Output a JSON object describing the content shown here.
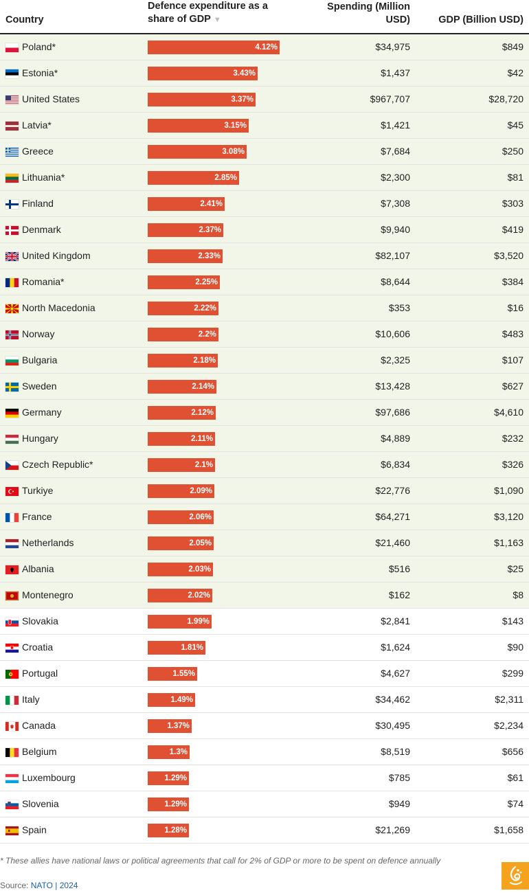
{
  "headers": {
    "country": "Country",
    "share_line1": "Defence expenditure as a",
    "share_line2": "share of GDP",
    "sort_indicator": "▼",
    "spending_line1": "Spending (Million",
    "spending_line2": "USD)",
    "gdp": "GDP (Billion USD)"
  },
  "colors": {
    "bar": "#e05032",
    "highlight": "#f1f6e9",
    "source_link": "#1a5fa8",
    "logo": "#f5a21d"
  },
  "chart_data": {
    "type": "table",
    "value_max": 4.12,
    "rows": [
      {
        "country": "Poland*",
        "flag": "poland-flag",
        "share": 4.12,
        "share_label": "4.12%",
        "spending": "$34,975",
        "gdp": "$849",
        "highlight": true
      },
      {
        "country": "Estonia*",
        "flag": "estonia-flag",
        "share": 3.43,
        "share_label": "3.43%",
        "spending": "$1,437",
        "gdp": "$42",
        "highlight": true
      },
      {
        "country": "United States",
        "flag": "united-states-flag",
        "share": 3.37,
        "share_label": "3.37%",
        "spending": "$967,707",
        "gdp": "$28,720",
        "highlight": true
      },
      {
        "country": "Latvia*",
        "flag": "latvia-flag",
        "share": 3.15,
        "share_label": "3.15%",
        "spending": "$1,421",
        "gdp": "$45",
        "highlight": true
      },
      {
        "country": "Greece",
        "flag": "greece-flag",
        "share": 3.08,
        "share_label": "3.08%",
        "spending": "$7,684",
        "gdp": "$250",
        "highlight": true
      },
      {
        "country": "Lithuania*",
        "flag": "lithuania-flag",
        "share": 2.85,
        "share_label": "2.85%",
        "spending": "$2,300",
        "gdp": "$81",
        "highlight": true
      },
      {
        "country": "Finland",
        "flag": "finland-flag",
        "share": 2.41,
        "share_label": "2.41%",
        "spending": "$7,308",
        "gdp": "$303",
        "highlight": true
      },
      {
        "country": "Denmark",
        "flag": "denmark-flag",
        "share": 2.37,
        "share_label": "2.37%",
        "spending": "$9,940",
        "gdp": "$419",
        "highlight": true
      },
      {
        "country": "United Kingdom",
        "flag": "united-kingdom-flag",
        "share": 2.33,
        "share_label": "2.33%",
        "spending": "$82,107",
        "gdp": "$3,520",
        "highlight": true
      },
      {
        "country": "Romania*",
        "flag": "romania-flag",
        "share": 2.25,
        "share_label": "2.25%",
        "spending": "$8,644",
        "gdp": "$384",
        "highlight": true
      },
      {
        "country": "North Macedonia",
        "flag": "north-macedonia-flag",
        "share": 2.22,
        "share_label": "2.22%",
        "spending": "$353",
        "gdp": "$16",
        "highlight": true
      },
      {
        "country": "Norway",
        "flag": "norway-flag",
        "share": 2.2,
        "share_label": "2.2%",
        "spending": "$10,606",
        "gdp": "$483",
        "highlight": true
      },
      {
        "country": "Bulgaria",
        "flag": "bulgaria-flag",
        "share": 2.18,
        "share_label": "2.18%",
        "spending": "$2,325",
        "gdp": "$107",
        "highlight": true
      },
      {
        "country": "Sweden",
        "flag": "sweden-flag",
        "share": 2.14,
        "share_label": "2.14%",
        "spending": "$13,428",
        "gdp": "$627",
        "highlight": true
      },
      {
        "country": "Germany",
        "flag": "germany-flag",
        "share": 2.12,
        "share_label": "2.12%",
        "spending": "$97,686",
        "gdp": "$4,610",
        "highlight": true
      },
      {
        "country": "Hungary",
        "flag": "hungary-flag",
        "share": 2.11,
        "share_label": "2.11%",
        "spending": "$4,889",
        "gdp": "$232",
        "highlight": true
      },
      {
        "country": "Czech Republic*",
        "flag": "czech-republic-flag",
        "share": 2.1,
        "share_label": "2.1%",
        "spending": "$6,834",
        "gdp": "$326",
        "highlight": true
      },
      {
        "country": "Turkiye",
        "flag": "turkiye-flag",
        "share": 2.09,
        "share_label": "2.09%",
        "spending": "$22,776",
        "gdp": "$1,090",
        "highlight": true
      },
      {
        "country": "France",
        "flag": "france-flag",
        "share": 2.06,
        "share_label": "2.06%",
        "spending": "$64,271",
        "gdp": "$3,120",
        "highlight": true
      },
      {
        "country": "Netherlands",
        "flag": "netherlands-flag",
        "share": 2.05,
        "share_label": "2.05%",
        "spending": "$21,460",
        "gdp": "$1,163",
        "highlight": true
      },
      {
        "country": "Albania",
        "flag": "albania-flag",
        "share": 2.03,
        "share_label": "2.03%",
        "spending": "$516",
        "gdp": "$25",
        "highlight": true
      },
      {
        "country": "Montenegro",
        "flag": "montenegro-flag",
        "share": 2.02,
        "share_label": "2.02%",
        "spending": "$162",
        "gdp": "$8",
        "highlight": true
      },
      {
        "country": "Slovakia",
        "flag": "slovakia-flag",
        "share": 1.99,
        "share_label": "1.99%",
        "spending": "$2,841",
        "gdp": "$143",
        "highlight": false
      },
      {
        "country": "Croatia",
        "flag": "croatia-flag",
        "share": 1.81,
        "share_label": "1.81%",
        "spending": "$1,624",
        "gdp": "$90",
        "highlight": false
      },
      {
        "country": "Portugal",
        "flag": "portugal-flag",
        "share": 1.55,
        "share_label": "1.55%",
        "spending": "$4,627",
        "gdp": "$299",
        "highlight": false
      },
      {
        "country": "Italy",
        "flag": "italy-flag",
        "share": 1.49,
        "share_label": "1.49%",
        "spending": "$34,462",
        "gdp": "$2,311",
        "highlight": false
      },
      {
        "country": "Canada",
        "flag": "canada-flag",
        "share": 1.37,
        "share_label": "1.37%",
        "spending": "$30,495",
        "gdp": "$2,234",
        "highlight": false
      },
      {
        "country": "Belgium",
        "flag": "belgium-flag",
        "share": 1.3,
        "share_label": "1.3%",
        "spending": "$8,519",
        "gdp": "$656",
        "highlight": false
      },
      {
        "country": "Luxembourg",
        "flag": "luxembourg-flag",
        "share": 1.29,
        "share_label": "1.29%",
        "spending": "$785",
        "gdp": "$61",
        "highlight": false
      },
      {
        "country": "Slovenia",
        "flag": "slovenia-flag",
        "share": 1.29,
        "share_label": "1.29%",
        "spending": "$949",
        "gdp": "$74",
        "highlight": false
      },
      {
        "country": "Spain",
        "flag": "spain-flag",
        "share": 1.28,
        "share_label": "1.28%",
        "spending": "$21,269",
        "gdp": "$1,658",
        "highlight": false
      }
    ]
  },
  "footnote": "* These allies have national laws or political agreements that call for 2% of GDP or more to be spent on defence annually",
  "source": {
    "prefix": "Source: ",
    "link": "NATO | 2024"
  },
  "logo_icon": "al-jazeera-logo-icon"
}
